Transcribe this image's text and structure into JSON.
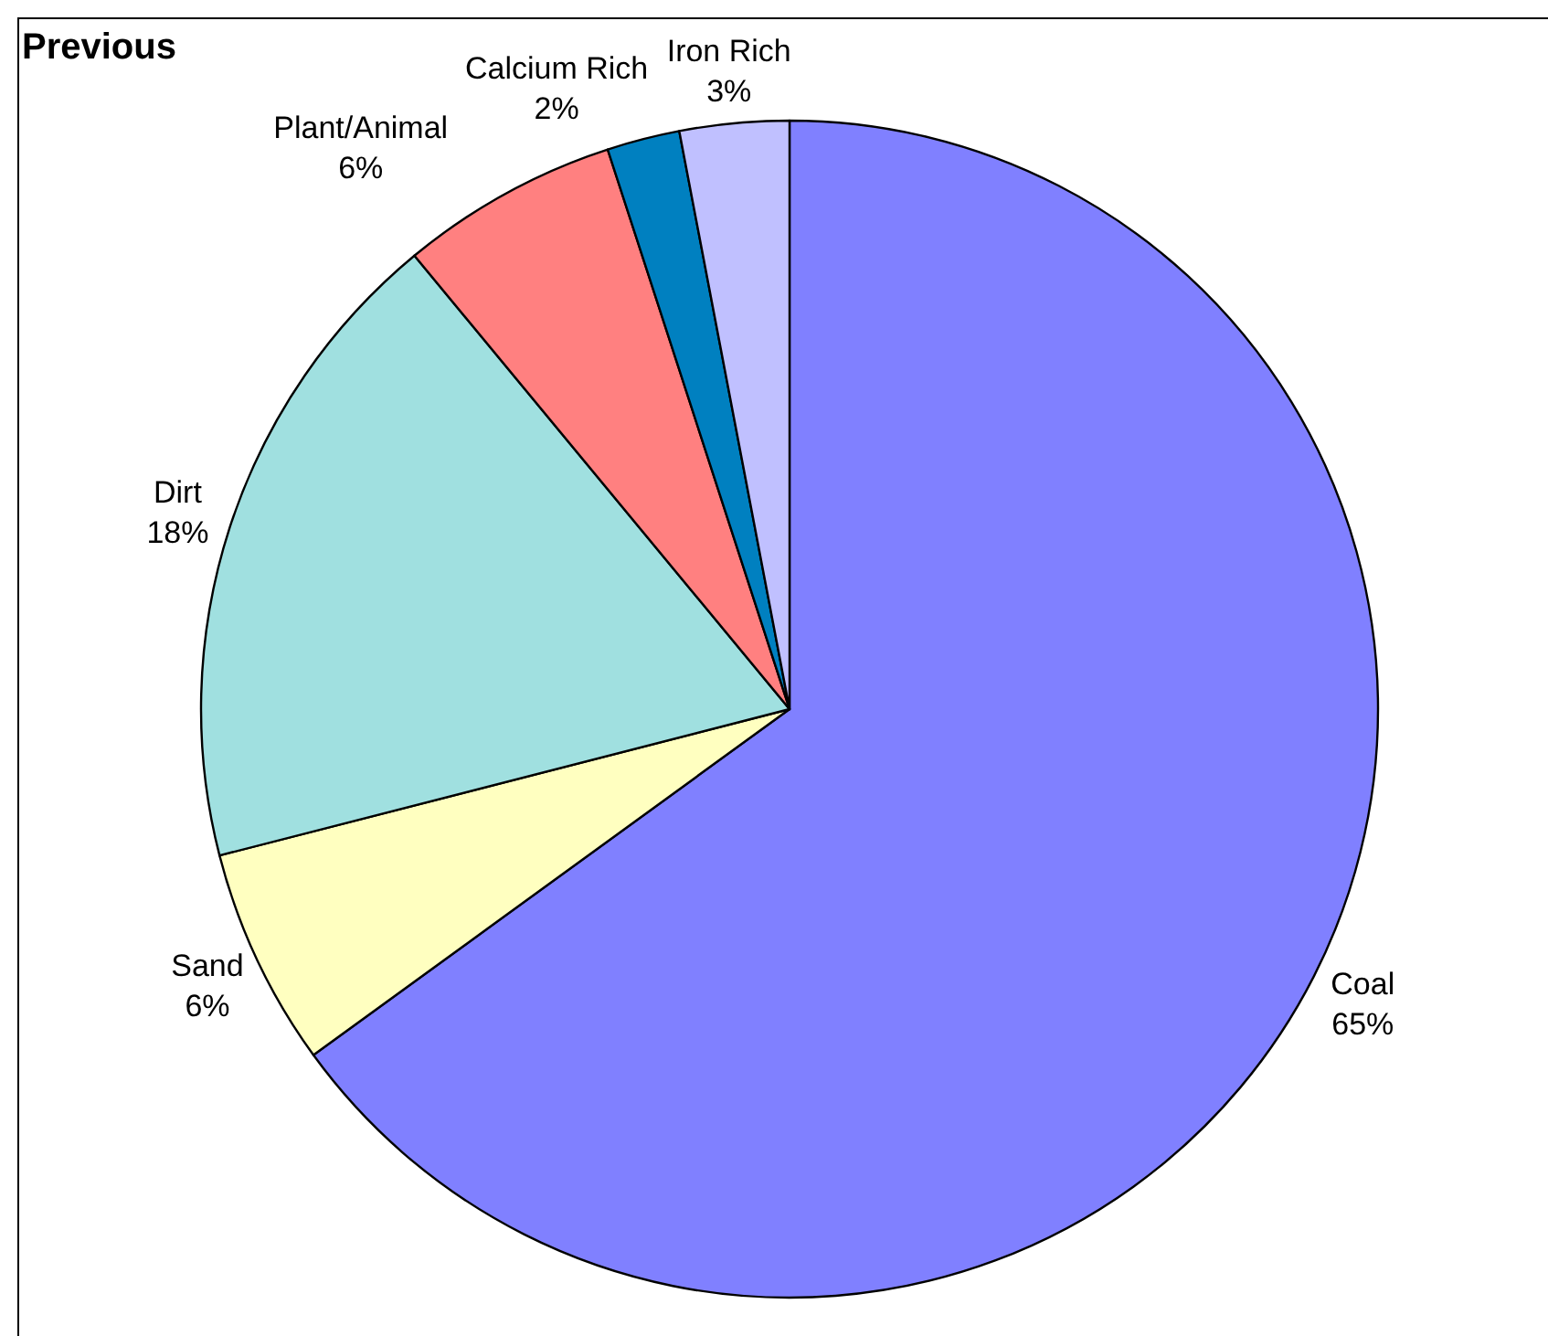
{
  "chart_data": {
    "type": "pie",
    "title": "Previous",
    "categories": [
      "Coal",
      "Sand",
      "Dirt",
      "Plant/Animal",
      "Calcium Rich",
      "Iron Rich"
    ],
    "values": [
      65,
      6,
      18,
      6,
      2,
      3
    ],
    "value_labels": [
      "65%",
      "6%",
      "18%",
      "6%",
      "2%",
      "3%"
    ],
    "colors": [
      "#8080ff",
      "#ffffc0",
      "#a0e0e0",
      "#ff8080",
      "#0080c0",
      "#c0c0ff"
    ]
  }
}
